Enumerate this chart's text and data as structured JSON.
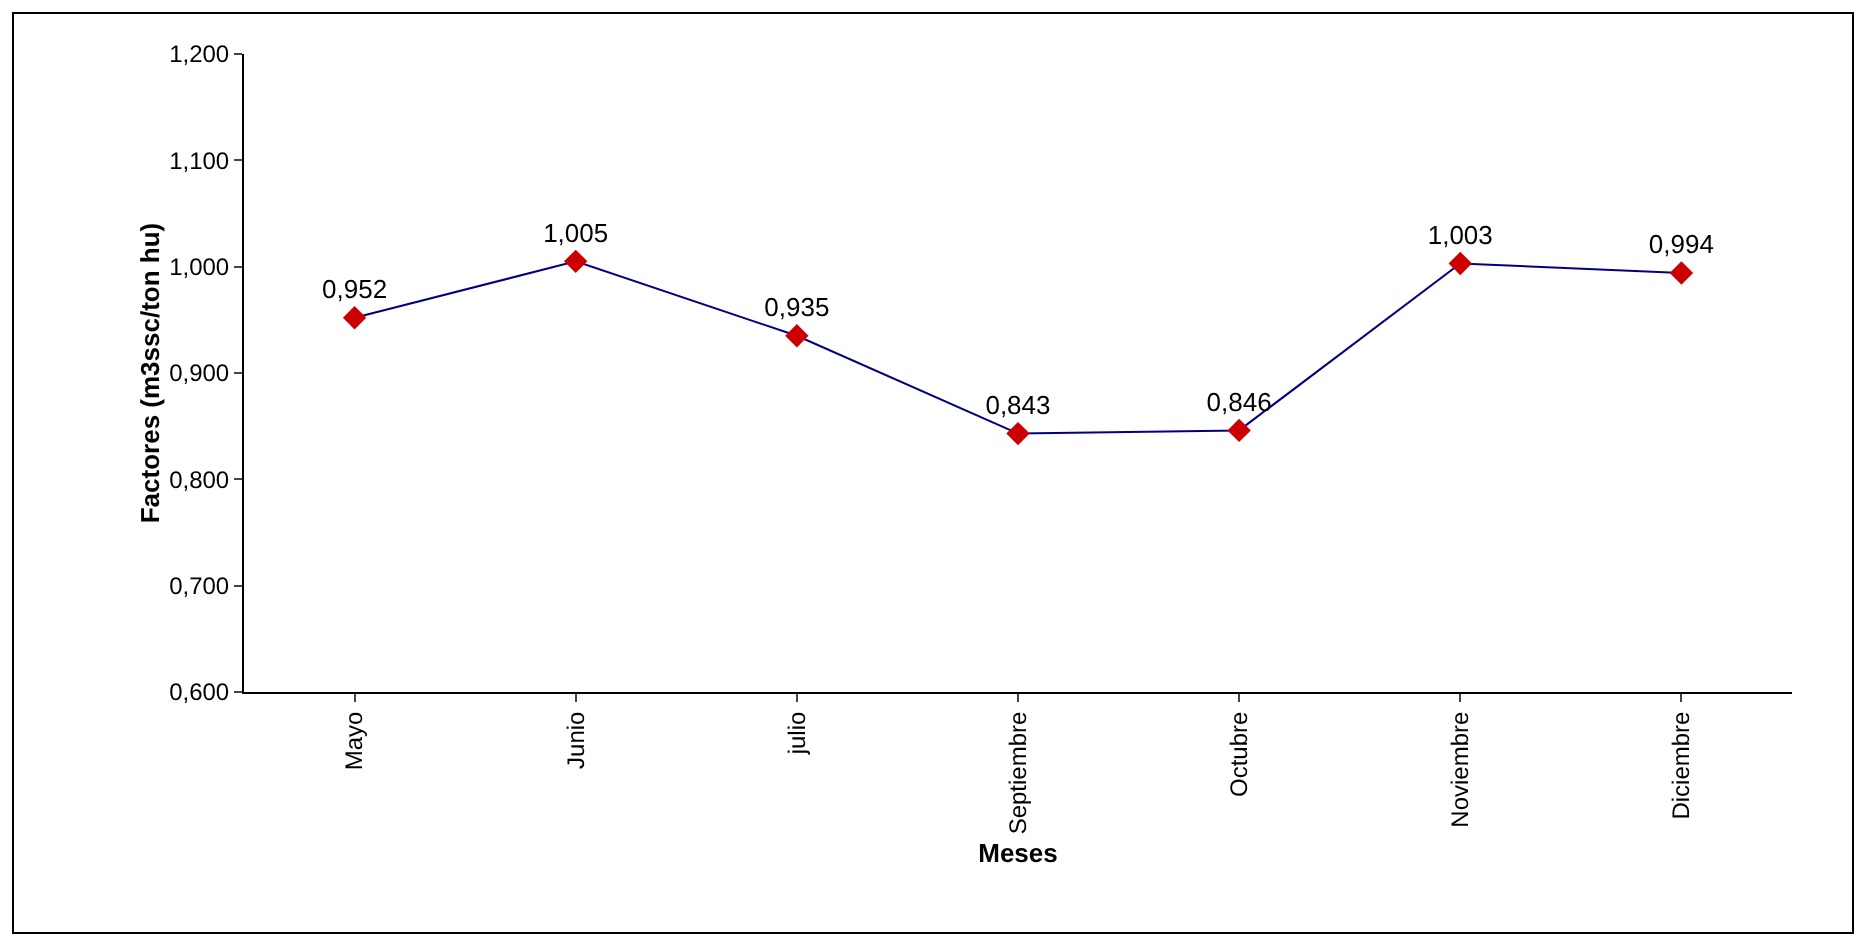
{
  "chart_data": {
    "type": "line",
    "xlabel": "Meses",
    "ylabel": "Factores (m3ssc/ton hu)",
    "categories": [
      "Mayo",
      "Junio",
      "julio",
      "Septiembre",
      "Octubre",
      "Noviembre",
      "Diciembre"
    ],
    "series": [
      {
        "color": "#000080",
        "values": [
          0.952,
          1.005,
          0.935,
          0.843,
          0.846,
          1.003,
          0.994
        ],
        "value_labels": [
          "0,952",
          "1,005",
          "0,935",
          "0,843",
          "0,846",
          "1,003",
          "0,994"
        ],
        "colors": [
          "#cc0000",
          "#cc0000",
          "#cc0000",
          "#cc0000",
          "#cc0000",
          "#cc0000",
          "#cc0000"
        ]
      }
    ],
    "marker": "diamond",
    "line_style": "solid",
    "ylim": [
      0.6,
      1.2
    ],
    "yticks": [
      {
        "value": 0.6,
        "label": "0,600"
      },
      {
        "value": 0.7,
        "label": "0,700"
      },
      {
        "value": 0.8,
        "label": "0,800"
      },
      {
        "value": 0.9,
        "label": "0,900"
      },
      {
        "value": 1.0,
        "label": "1,000"
      },
      {
        "value": 1.1,
        "label": "1,100"
      },
      {
        "value": 1.2,
        "label": "1,200"
      }
    ],
    "grid": false,
    "legend": false
  }
}
